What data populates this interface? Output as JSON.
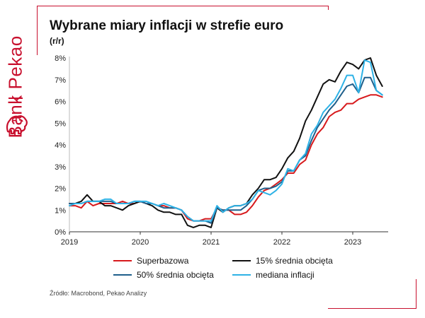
{
  "brand": {
    "name": "Bank Pekao",
    "color": "#c8102e",
    "logo_icon": "bison-icon"
  },
  "header": {
    "title": "Wybrane miary inflacji w strefie euro",
    "subtitle": "(r/r)"
  },
  "source": "Źródło: Macrobond, Pekao Analizy",
  "chart_data": {
    "type": "line",
    "title": "Wybrane miary inflacji w strefie euro",
    "subtitle": "(r/r)",
    "xlabel": "",
    "ylabel": "",
    "xlim": [
      2019.0,
      2023.5
    ],
    "ylim": [
      0,
      8
    ],
    "x_ticks": [
      2019,
      2020,
      2021,
      2022,
      2023
    ],
    "x_tick_labels": [
      "2019",
      "2020",
      "2021",
      "2022",
      "2023"
    ],
    "y_ticks": [
      0,
      1,
      2,
      3,
      4,
      5,
      6,
      7,
      8
    ],
    "y_tick_labels": [
      "0%",
      "1%",
      "2%",
      "3%",
      "4%",
      "5%",
      "6%",
      "7%",
      "8%"
    ],
    "grid": false,
    "legend_position": "bottom",
    "series": [
      {
        "name": "Superbazowa",
        "color": "#d7191c",
        "points": [
          [
            2019.0,
            1.2
          ],
          [
            2019.083,
            1.2
          ],
          [
            2019.167,
            1.1
          ],
          [
            2019.25,
            1.4
          ],
          [
            2019.333,
            1.2
          ],
          [
            2019.417,
            1.3
          ],
          [
            2019.5,
            1.3
          ],
          [
            2019.583,
            1.3
          ],
          [
            2019.667,
            1.3
          ],
          [
            2019.75,
            1.4
          ],
          [
            2019.833,
            1.3
          ],
          [
            2019.917,
            1.3
          ],
          [
            2020.0,
            1.4
          ],
          [
            2020.083,
            1.3
          ],
          [
            2020.167,
            1.3
          ],
          [
            2020.25,
            1.2
          ],
          [
            2020.333,
            1.2
          ],
          [
            2020.417,
            1.1
          ],
          [
            2020.5,
            1.1
          ],
          [
            2020.583,
            1.0
          ],
          [
            2020.667,
            0.6
          ],
          [
            2020.75,
            0.5
          ],
          [
            2020.833,
            0.5
          ],
          [
            2020.917,
            0.6
          ],
          [
            2021.0,
            0.6
          ],
          [
            2021.083,
            1.1
          ],
          [
            2021.167,
            1.0
          ],
          [
            2021.25,
            1.0
          ],
          [
            2021.333,
            0.8
          ],
          [
            2021.417,
            0.8
          ],
          [
            2021.5,
            0.9
          ],
          [
            2021.583,
            1.2
          ],
          [
            2021.667,
            1.6
          ],
          [
            2021.75,
            1.9
          ],
          [
            2021.833,
            2.0
          ],
          [
            2021.917,
            2.2
          ],
          [
            2022.0,
            2.4
          ],
          [
            2022.083,
            2.7
          ],
          [
            2022.167,
            2.7
          ],
          [
            2022.25,
            3.1
          ],
          [
            2022.333,
            3.3
          ],
          [
            2022.417,
            4.0
          ],
          [
            2022.5,
            4.5
          ],
          [
            2022.583,
            4.8
          ],
          [
            2022.667,
            5.3
          ],
          [
            2022.75,
            5.5
          ],
          [
            2022.833,
            5.6
          ],
          [
            2022.917,
            5.9
          ],
          [
            2023.0,
            5.9
          ],
          [
            2023.083,
            6.1
          ],
          [
            2023.167,
            6.2
          ],
          [
            2023.25,
            6.3
          ],
          [
            2023.333,
            6.3
          ],
          [
            2023.417,
            6.2
          ]
        ]
      },
      {
        "name": "15% średnia obcięta",
        "color": "#111111",
        "points": [
          [
            2019.0,
            1.3
          ],
          [
            2019.083,
            1.3
          ],
          [
            2019.167,
            1.4
          ],
          [
            2019.25,
            1.7
          ],
          [
            2019.333,
            1.4
          ],
          [
            2019.417,
            1.4
          ],
          [
            2019.5,
            1.2
          ],
          [
            2019.583,
            1.2
          ],
          [
            2019.667,
            1.1
          ],
          [
            2019.75,
            1.0
          ],
          [
            2019.833,
            1.2
          ],
          [
            2019.917,
            1.3
          ],
          [
            2020.0,
            1.4
          ],
          [
            2020.083,
            1.3
          ],
          [
            2020.167,
            1.2
          ],
          [
            2020.25,
            1.0
          ],
          [
            2020.333,
            0.9
          ],
          [
            2020.417,
            0.9
          ],
          [
            2020.5,
            0.8
          ],
          [
            2020.583,
            0.8
          ],
          [
            2020.667,
            0.3
          ],
          [
            2020.75,
            0.2
          ],
          [
            2020.833,
            0.3
          ],
          [
            2020.917,
            0.3
          ],
          [
            2021.0,
            0.2
          ],
          [
            2021.083,
            1.1
          ],
          [
            2021.167,
            0.9
          ],
          [
            2021.25,
            1.1
          ],
          [
            2021.333,
            1.2
          ],
          [
            2021.417,
            1.2
          ],
          [
            2021.5,
            1.3
          ],
          [
            2021.583,
            1.7
          ],
          [
            2021.667,
            2.0
          ],
          [
            2021.75,
            2.4
          ],
          [
            2021.833,
            2.4
          ],
          [
            2021.917,
            2.5
          ],
          [
            2022.0,
            2.9
          ],
          [
            2022.083,
            3.4
          ],
          [
            2022.167,
            3.7
          ],
          [
            2022.25,
            4.3
          ],
          [
            2022.333,
            5.1
          ],
          [
            2022.417,
            5.6
          ],
          [
            2022.5,
            6.2
          ],
          [
            2022.583,
            6.8
          ],
          [
            2022.667,
            7.0
          ],
          [
            2022.75,
            6.9
          ],
          [
            2022.833,
            7.4
          ],
          [
            2022.917,
            7.8
          ],
          [
            2023.0,
            7.7
          ],
          [
            2023.083,
            7.5
          ],
          [
            2023.167,
            7.9
          ],
          [
            2023.25,
            8.0
          ],
          [
            2023.333,
            7.2
          ],
          [
            2023.417,
            6.7
          ]
        ]
      },
      {
        "name": "50% średnia obcięta",
        "color": "#1f5f8b",
        "points": [
          [
            2019.0,
            1.3
          ],
          [
            2019.083,
            1.3
          ],
          [
            2019.167,
            1.3
          ],
          [
            2019.25,
            1.4
          ],
          [
            2019.333,
            1.4
          ],
          [
            2019.417,
            1.4
          ],
          [
            2019.5,
            1.4
          ],
          [
            2019.583,
            1.4
          ],
          [
            2019.667,
            1.3
          ],
          [
            2019.75,
            1.3
          ],
          [
            2019.833,
            1.3
          ],
          [
            2019.917,
            1.4
          ],
          [
            2020.0,
            1.4
          ],
          [
            2020.083,
            1.3
          ],
          [
            2020.167,
            1.3
          ],
          [
            2020.25,
            1.2
          ],
          [
            2020.333,
            1.1
          ],
          [
            2020.417,
            1.1
          ],
          [
            2020.5,
            1.1
          ],
          [
            2020.583,
            1.0
          ],
          [
            2020.667,
            0.7
          ],
          [
            2020.75,
            0.5
          ],
          [
            2020.833,
            0.5
          ],
          [
            2020.917,
            0.5
          ],
          [
            2021.0,
            0.4
          ],
          [
            2021.083,
            1.1
          ],
          [
            2021.167,
            1.0
          ],
          [
            2021.25,
            1.0
          ],
          [
            2021.333,
            1.0
          ],
          [
            2021.417,
            1.0
          ],
          [
            2021.5,
            1.2
          ],
          [
            2021.583,
            1.5
          ],
          [
            2021.667,
            1.9
          ],
          [
            2021.75,
            2.0
          ],
          [
            2021.833,
            2.0
          ],
          [
            2021.917,
            2.1
          ],
          [
            2022.0,
            2.3
          ],
          [
            2022.083,
            2.8
          ],
          [
            2022.167,
            2.8
          ],
          [
            2022.25,
            3.3
          ],
          [
            2022.333,
            3.5
          ],
          [
            2022.417,
            4.2
          ],
          [
            2022.5,
            4.8
          ],
          [
            2022.583,
            5.2
          ],
          [
            2022.667,
            5.6
          ],
          [
            2022.75,
            5.9
          ],
          [
            2022.833,
            6.3
          ],
          [
            2022.917,
            6.7
          ],
          [
            2023.0,
            6.8
          ],
          [
            2023.083,
            6.4
          ],
          [
            2023.167,
            7.1
          ],
          [
            2023.25,
            7.1
          ],
          [
            2023.333,
            6.5
          ],
          [
            2023.417,
            6.3
          ]
        ]
      },
      {
        "name": "mediana inflacji",
        "color": "#2eb2e6",
        "points": [
          [
            2019.0,
            1.2
          ],
          [
            2019.083,
            1.3
          ],
          [
            2019.167,
            1.3
          ],
          [
            2019.25,
            1.4
          ],
          [
            2019.333,
            1.4
          ],
          [
            2019.417,
            1.4
          ],
          [
            2019.5,
            1.5
          ],
          [
            2019.583,
            1.5
          ],
          [
            2019.667,
            1.3
          ],
          [
            2019.75,
            1.3
          ],
          [
            2019.833,
            1.3
          ],
          [
            2019.917,
            1.4
          ],
          [
            2020.0,
            1.4
          ],
          [
            2020.083,
            1.4
          ],
          [
            2020.167,
            1.3
          ],
          [
            2020.25,
            1.2
          ],
          [
            2020.333,
            1.3
          ],
          [
            2020.417,
            1.2
          ],
          [
            2020.5,
            1.1
          ],
          [
            2020.583,
            1.0
          ],
          [
            2020.667,
            0.7
          ],
          [
            2020.75,
            0.5
          ],
          [
            2020.833,
            0.5
          ],
          [
            2020.917,
            0.5
          ],
          [
            2021.0,
            0.5
          ],
          [
            2021.083,
            1.2
          ],
          [
            2021.167,
            0.9
          ],
          [
            2021.25,
            1.1
          ],
          [
            2021.333,
            1.2
          ],
          [
            2021.417,
            1.2
          ],
          [
            2021.5,
            1.3
          ],
          [
            2021.583,
            1.5
          ],
          [
            2021.667,
            1.9
          ],
          [
            2021.75,
            1.8
          ],
          [
            2021.833,
            1.7
          ],
          [
            2021.917,
            1.9
          ],
          [
            2022.0,
            2.2
          ],
          [
            2022.083,
            2.9
          ],
          [
            2022.167,
            2.8
          ],
          [
            2022.25,
            3.3
          ],
          [
            2022.333,
            3.6
          ],
          [
            2022.417,
            4.5
          ],
          [
            2022.5,
            4.9
          ],
          [
            2022.583,
            5.5
          ],
          [
            2022.667,
            5.8
          ],
          [
            2022.75,
            6.1
          ],
          [
            2022.833,
            6.6
          ],
          [
            2022.917,
            7.2
          ],
          [
            2023.0,
            7.2
          ],
          [
            2023.083,
            6.4
          ],
          [
            2023.167,
            7.9
          ],
          [
            2023.25,
            7.8
          ],
          [
            2023.333,
            6.5
          ],
          [
            2023.417,
            6.3
          ]
        ]
      }
    ]
  }
}
